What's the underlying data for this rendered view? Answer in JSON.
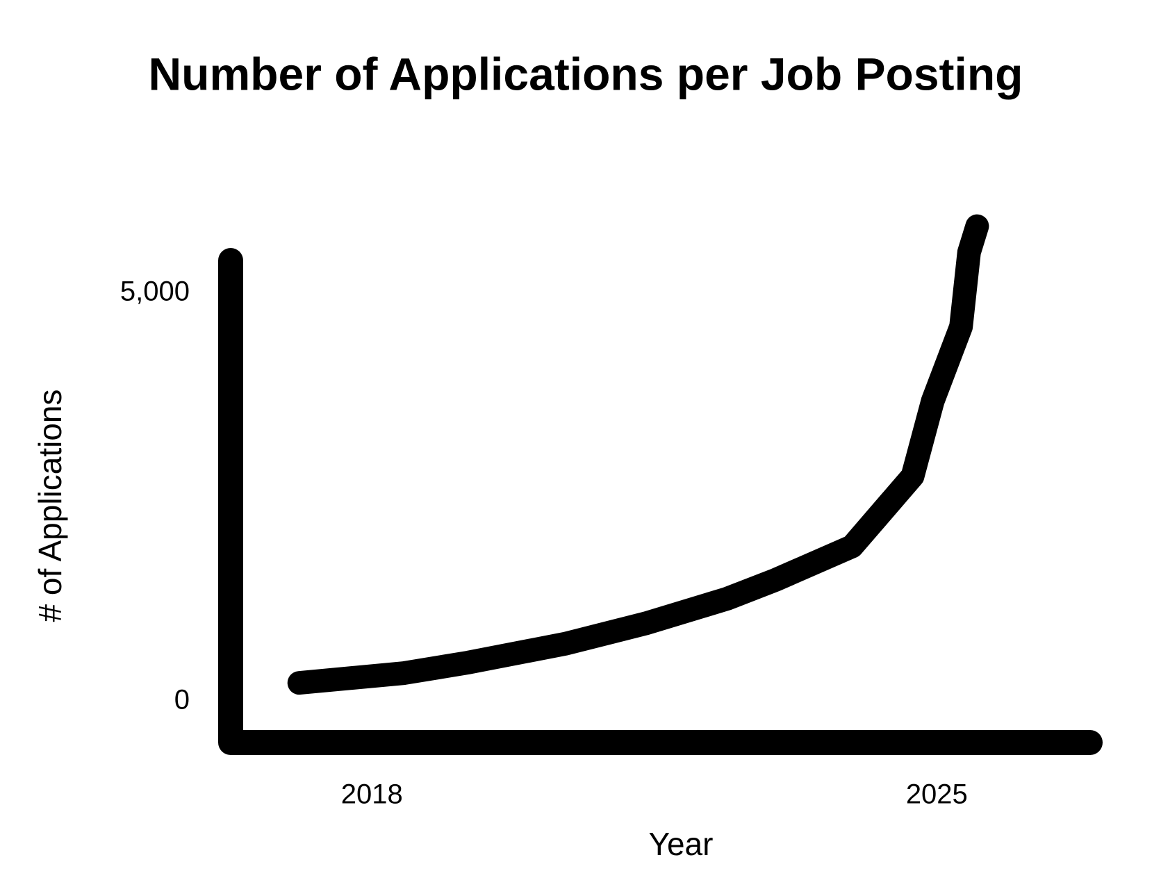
{
  "chart_data": {
    "type": "line",
    "title": "Number of Applications per Job Posting",
    "x_label": "Year",
    "y_label": "# of Applications",
    "x": [
      2017.1,
      2018.4,
      2019.2,
      2020.4,
      2021.4,
      2022.4,
      2023.0,
      2023.95,
      2024.7,
      2024.95,
      2025.3,
      2025.4,
      2025.5
    ],
    "values": [
      230,
      350,
      480,
      710,
      960,
      1260,
      1490,
      1900,
      2760,
      3680,
      4590,
      5500,
      5820
    ],
    "color": "#000000",
    "xlim": [
      2016.25,
      2026.9
    ],
    "xticks": [
      2018,
      2025
    ],
    "ylim": [
      -500,
      5400
    ],
    "yticks": [
      0,
      {
        "value": 5000,
        "label": "5,000"
      }
    ],
    "grid": false
  }
}
